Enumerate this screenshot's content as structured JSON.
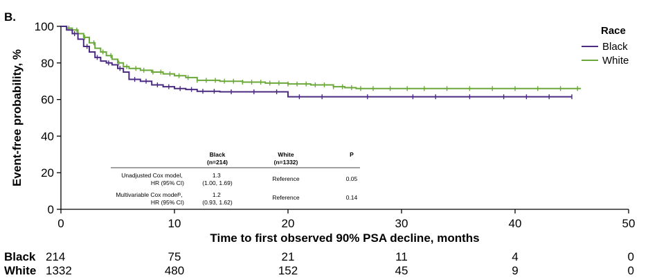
{
  "panel_label": "B.",
  "chart_data": {
    "type": "line",
    "subtype": "kaplan-meier",
    "xlabel": "Time to first observed 90% PSA decline, months",
    "ylabel": "Event-free probability, %",
    "xlim": [
      0,
      50
    ],
    "ylim": [
      0,
      100
    ],
    "xticks": [
      0,
      10,
      20,
      30,
      40,
      50
    ],
    "yticks": [
      0,
      20,
      40,
      60,
      80,
      100
    ],
    "grid": false,
    "legend": {
      "title": "Race",
      "position": "top-right"
    },
    "series": [
      {
        "name": "Black",
        "color": "#4b2a82",
        "x": [
          0,
          0.5,
          1,
          1.5,
          2,
          2.5,
          3,
          3.5,
          4,
          4.5,
          5,
          5.5,
          6,
          7,
          8,
          9,
          10,
          11,
          12,
          14,
          16,
          18,
          19.8,
          20,
          22,
          25,
          30,
          35,
          40,
          45
        ],
        "y": [
          100,
          98,
          96,
          93,
          89,
          86,
          83,
          81,
          80,
          79,
          77,
          75,
          71,
          70,
          68,
          67,
          66,
          65.5,
          64.5,
          64.2,
          64.2,
          64.2,
          64.2,
          61.5,
          61.5,
          61.5,
          61.5,
          61.5,
          61.5,
          61.5
        ],
        "censor_x": [
          1.2,
          2.3,
          3.2,
          4.2,
          5.2,
          6.5,
          7.5,
          8.5,
          9.5,
          10.5,
          11.5,
          12.5,
          13.5,
          15,
          17,
          19,
          21,
          23,
          27,
          31,
          33,
          36,
          39,
          41,
          43,
          45
        ]
      },
      {
        "name": "White",
        "color": "#6aa83a",
        "x": [
          0,
          0.5,
          1,
          1.5,
          2,
          2.5,
          3,
          3.5,
          4,
          4.5,
          5,
          5.5,
          6,
          7,
          8,
          9,
          10,
          11,
          12,
          14,
          16,
          18,
          20,
          22,
          24,
          25,
          26,
          30,
          35,
          40,
          45,
          45.8
        ],
        "y": [
          100,
          99,
          98,
          96,
          94,
          91,
          88,
          86,
          84,
          82,
          80,
          78,
          77,
          76,
          75,
          74,
          73,
          72,
          70.5,
          70,
          69.5,
          69,
          68.5,
          68,
          67,
          66.5,
          66,
          66,
          66,
          66,
          66,
          66
        ],
        "censor_x": [
          0.7,
          1.4,
          2.1,
          2.9,
          3.7,
          4.4,
          5.1,
          5.8,
          6.6,
          7.3,
          8.1,
          8.8,
          9.6,
          10.4,
          11.2,
          12,
          12.8,
          13.6,
          14.4,
          15.2,
          16,
          16.8,
          17.6,
          18.4,
          19.2,
          20,
          20.8,
          21.6,
          22.4,
          23.2,
          24,
          24.8,
          25.6,
          26.4,
          27.5,
          29,
          30.5,
          32,
          34,
          36,
          38,
          40,
          42,
          44,
          45.5
        ]
      }
    ],
    "at_risk": {
      "times": [
        0,
        10,
        20,
        30,
        40,
        50
      ],
      "rows": [
        {
          "label": "Black",
          "counts": [
            "214",
            "75",
            "21",
            "11",
            "4",
            "0"
          ]
        },
        {
          "label": "White",
          "counts": [
            "1332",
            "480",
            "152",
            "45",
            "9",
            "0"
          ]
        }
      ]
    },
    "inset_table": {
      "headers": [
        "",
        "Black\n(n=214)",
        "White\n(n=1332)",
        "P"
      ],
      "rows": [
        {
          "label": [
            "Unadjusted Cox model,",
            "HR (95% CI)"
          ],
          "black": [
            "1.3",
            "(1.00, 1.69)"
          ],
          "white": "Reference",
          "p": "0.05"
        },
        {
          "label": [
            "Multivariable Cox modelᵇ,",
            "HR (95% CI)"
          ],
          "black": [
            "1.2",
            "(0.93, 1.62)"
          ],
          "white": "Reference",
          "p": "0.14"
        }
      ]
    }
  }
}
